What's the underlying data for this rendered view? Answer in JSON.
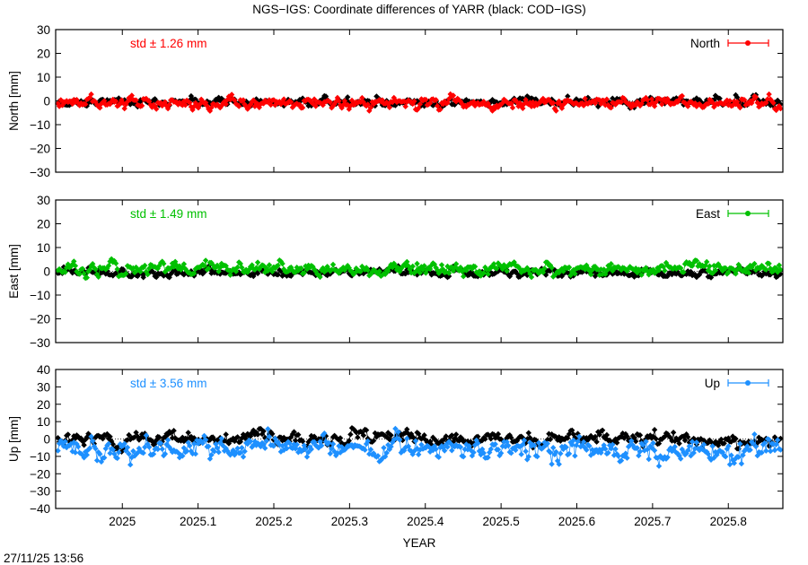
{
  "title": "NGS−IGS: Coordinate differences of YARR (black: COD−IGS)",
  "xlabel": "YEAR",
  "timestamp": "27/11/25 13:56",
  "chart_data": [
    {
      "type": "scatter",
      "panel": "north",
      "ylabel": "North [mm]",
      "ylim": [
        -30,
        30
      ],
      "yticks": [
        "30",
        "20",
        "10",
        "0",
        "−10",
        "−20",
        "−30"
      ],
      "xlim": [
        2024.912,
        2025.872
      ],
      "xticks": [
        "2025",
        "2025.1",
        "2025.2",
        "2025.3",
        "2025.4",
        "2025.5",
        "2025.6",
        "2025.7",
        "2025.8"
      ],
      "std_label": "std ± 1.26 mm",
      "legend": "North",
      "color": "#ff0000",
      "series": [
        {
          "name": "COD−IGS",
          "color": "#000000",
          "mean": -0.5,
          "sd": 1.0
        },
        {
          "name": "NGS−IGS",
          "color": "#ff0000",
          "mean": -1.0,
          "sd": 1.26
        }
      ]
    },
    {
      "type": "scatter",
      "panel": "east",
      "ylabel": "East [mm]",
      "ylim": [
        -30,
        30
      ],
      "yticks": [
        "30",
        "20",
        "10",
        "0",
        "−10",
        "−20",
        "−30"
      ],
      "xlim": [
        2024.912,
        2025.872
      ],
      "xticks": [
        "2025",
        "2025.1",
        "2025.2",
        "2025.3",
        "2025.4",
        "2025.5",
        "2025.6",
        "2025.7",
        "2025.8"
      ],
      "std_label": "std ± 1.49 mm",
      "legend": "East",
      "color": "#00c000",
      "series": [
        {
          "name": "COD−IGS",
          "color": "#000000",
          "mean": -0.5,
          "sd": 1.0
        },
        {
          "name": "NGS−IGS",
          "color": "#00c000",
          "mean": 1.2,
          "sd": 1.49
        }
      ]
    },
    {
      "type": "scatter",
      "panel": "up",
      "ylabel": "Up [mm]",
      "ylim": [
        -40,
        40
      ],
      "yticks": [
        "40",
        "30",
        "20",
        "10",
        "0",
        "−10",
        "−20",
        "−30",
        "−40"
      ],
      "xlim": [
        2024.912,
        2025.872
      ],
      "xticks": [
        "2025",
        "2025.1",
        "2025.2",
        "2025.3",
        "2025.4",
        "2025.5",
        "2025.6",
        "2025.7",
        "2025.8"
      ],
      "std_label": "std ± 3.56 mm",
      "legend": "Up",
      "color": "#1e90ff",
      "series": [
        {
          "name": "COD−IGS",
          "color": "#000000",
          "mean": 0.0,
          "sd": 2.3
        },
        {
          "name": "NGS−IGS",
          "color": "#1e90ff",
          "mean": -6.0,
          "sd": 3.56
        }
      ]
    }
  ]
}
